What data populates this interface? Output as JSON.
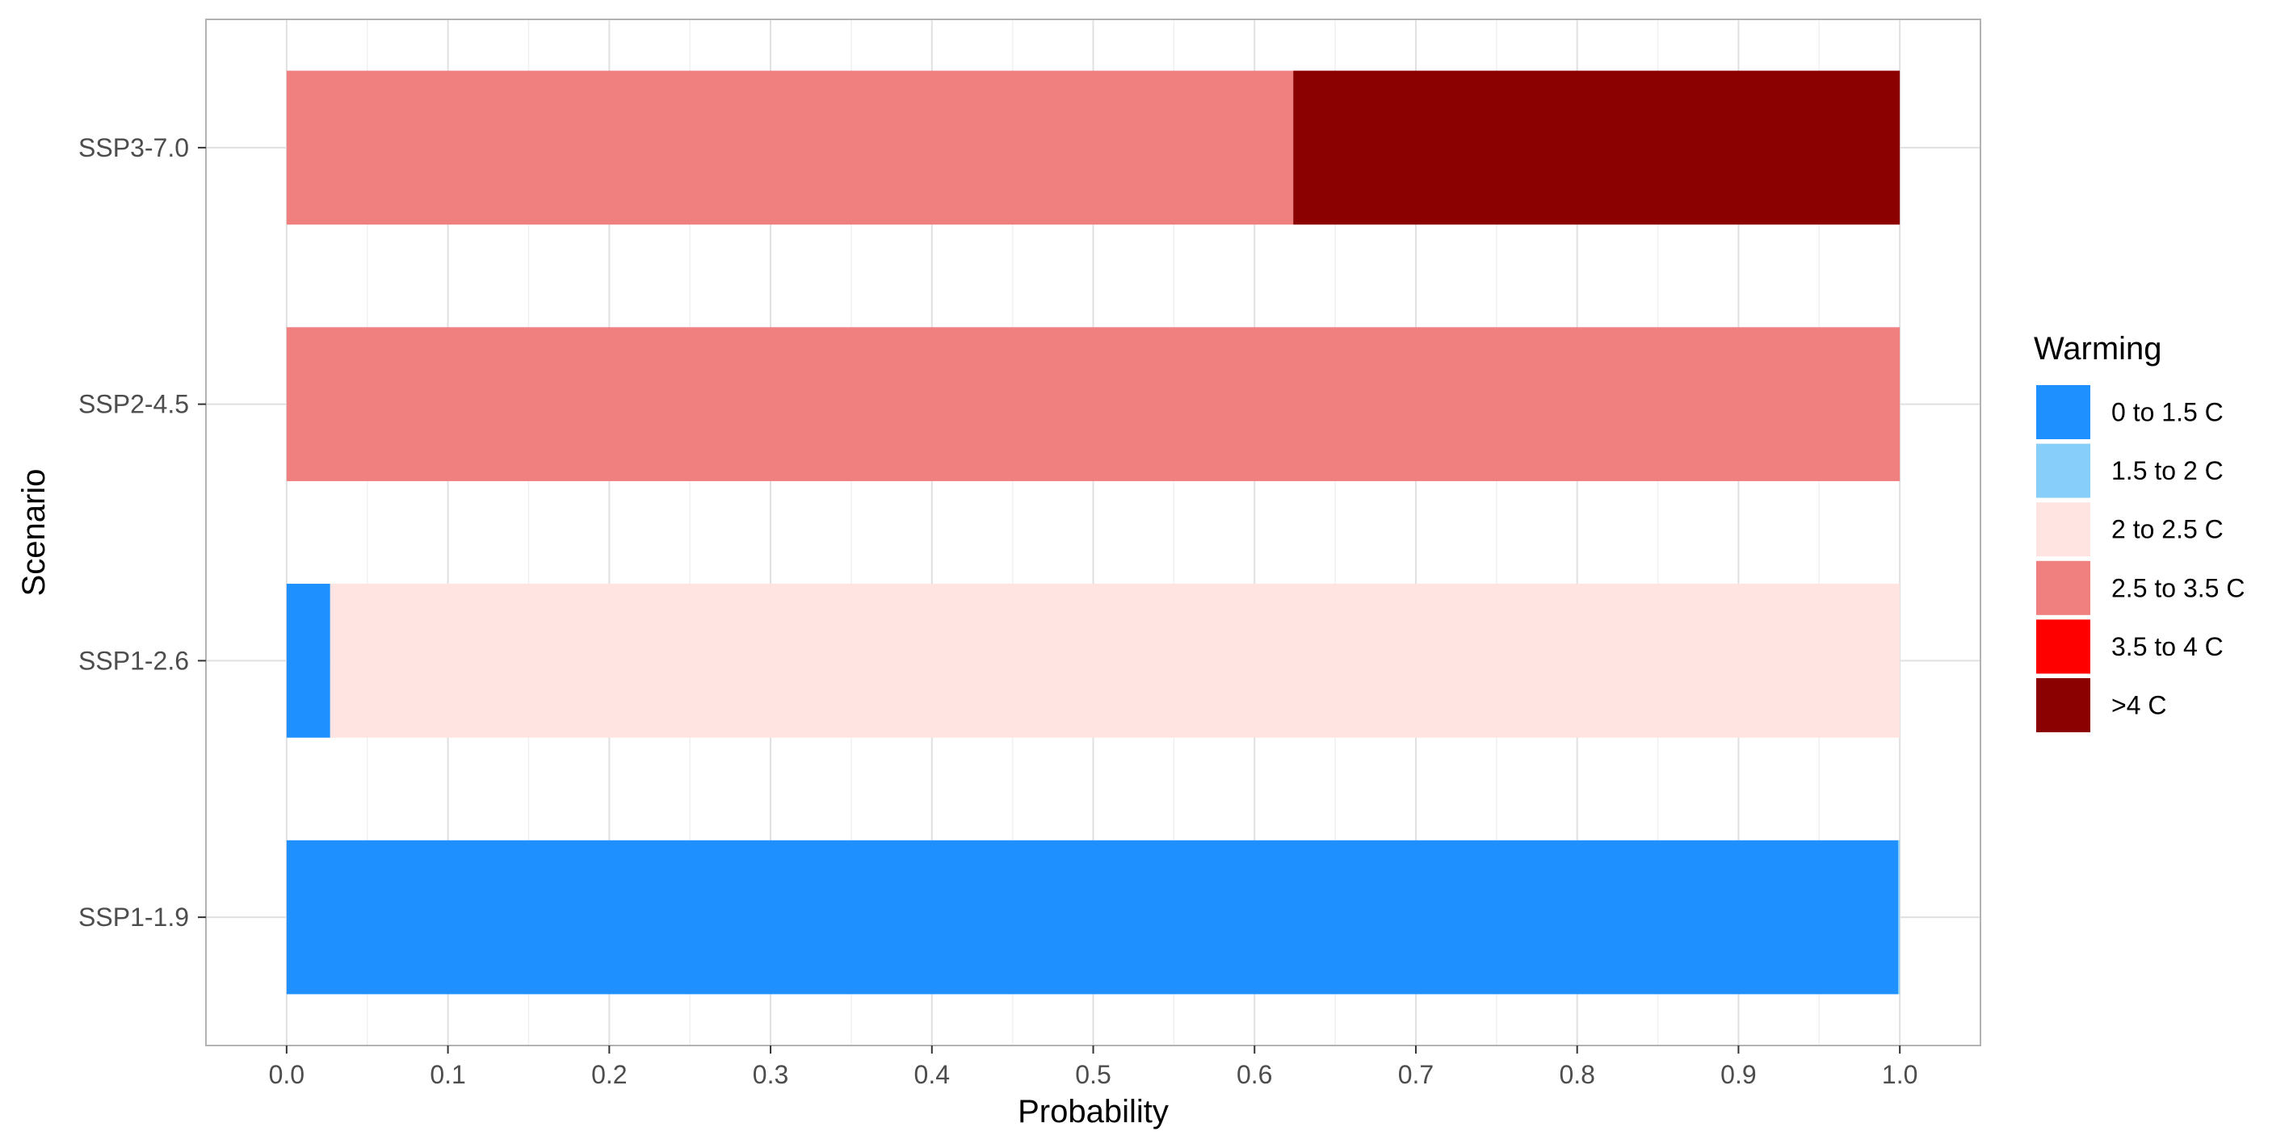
{
  "chart_data": {
    "type": "bar",
    "orientation": "horizontal",
    "stacked": true,
    "xlabel": "Probability",
    "ylabel": "Scenario",
    "xlim": [
      -0.05,
      1.05
    ],
    "x_ticks": [
      "0.0",
      "0.1",
      "0.2",
      "0.3",
      "0.4",
      "0.5",
      "0.6",
      "0.7",
      "0.8",
      "0.9",
      "1.0"
    ],
    "grid": true,
    "categories": [
      "SSP1-1.9",
      "SSP1-2.6",
      "SSP2-4.5",
      "SSP3-7.0"
    ],
    "legend": {
      "title": "Warming",
      "position": "right"
    },
    "series": [
      {
        "name": "0 to 1.5 C",
        "color": "#1E90FF",
        "values": [
          0.999,
          0.027,
          0,
          0
        ]
      },
      {
        "name": "1.5 to 2 C",
        "color": "#87CEFA",
        "values": [
          0.001,
          0,
          0,
          0
        ]
      },
      {
        "name": "2 to 2.5 C",
        "color": "#FFE4E1",
        "values": [
          0,
          0.973,
          0,
          0
        ]
      },
      {
        "name": "2.5 to 3.5 C",
        "color": "#F08080",
        "values": [
          0,
          0,
          1.0,
          0.624
        ]
      },
      {
        "name": "3.5 to 4 C",
        "color": "#FF0000",
        "values": [
          0,
          0,
          0,
          0
        ]
      },
      {
        "name": ">4 C",
        "color": "#8B0000",
        "values": [
          0,
          0,
          0,
          0.376
        ]
      }
    ]
  }
}
